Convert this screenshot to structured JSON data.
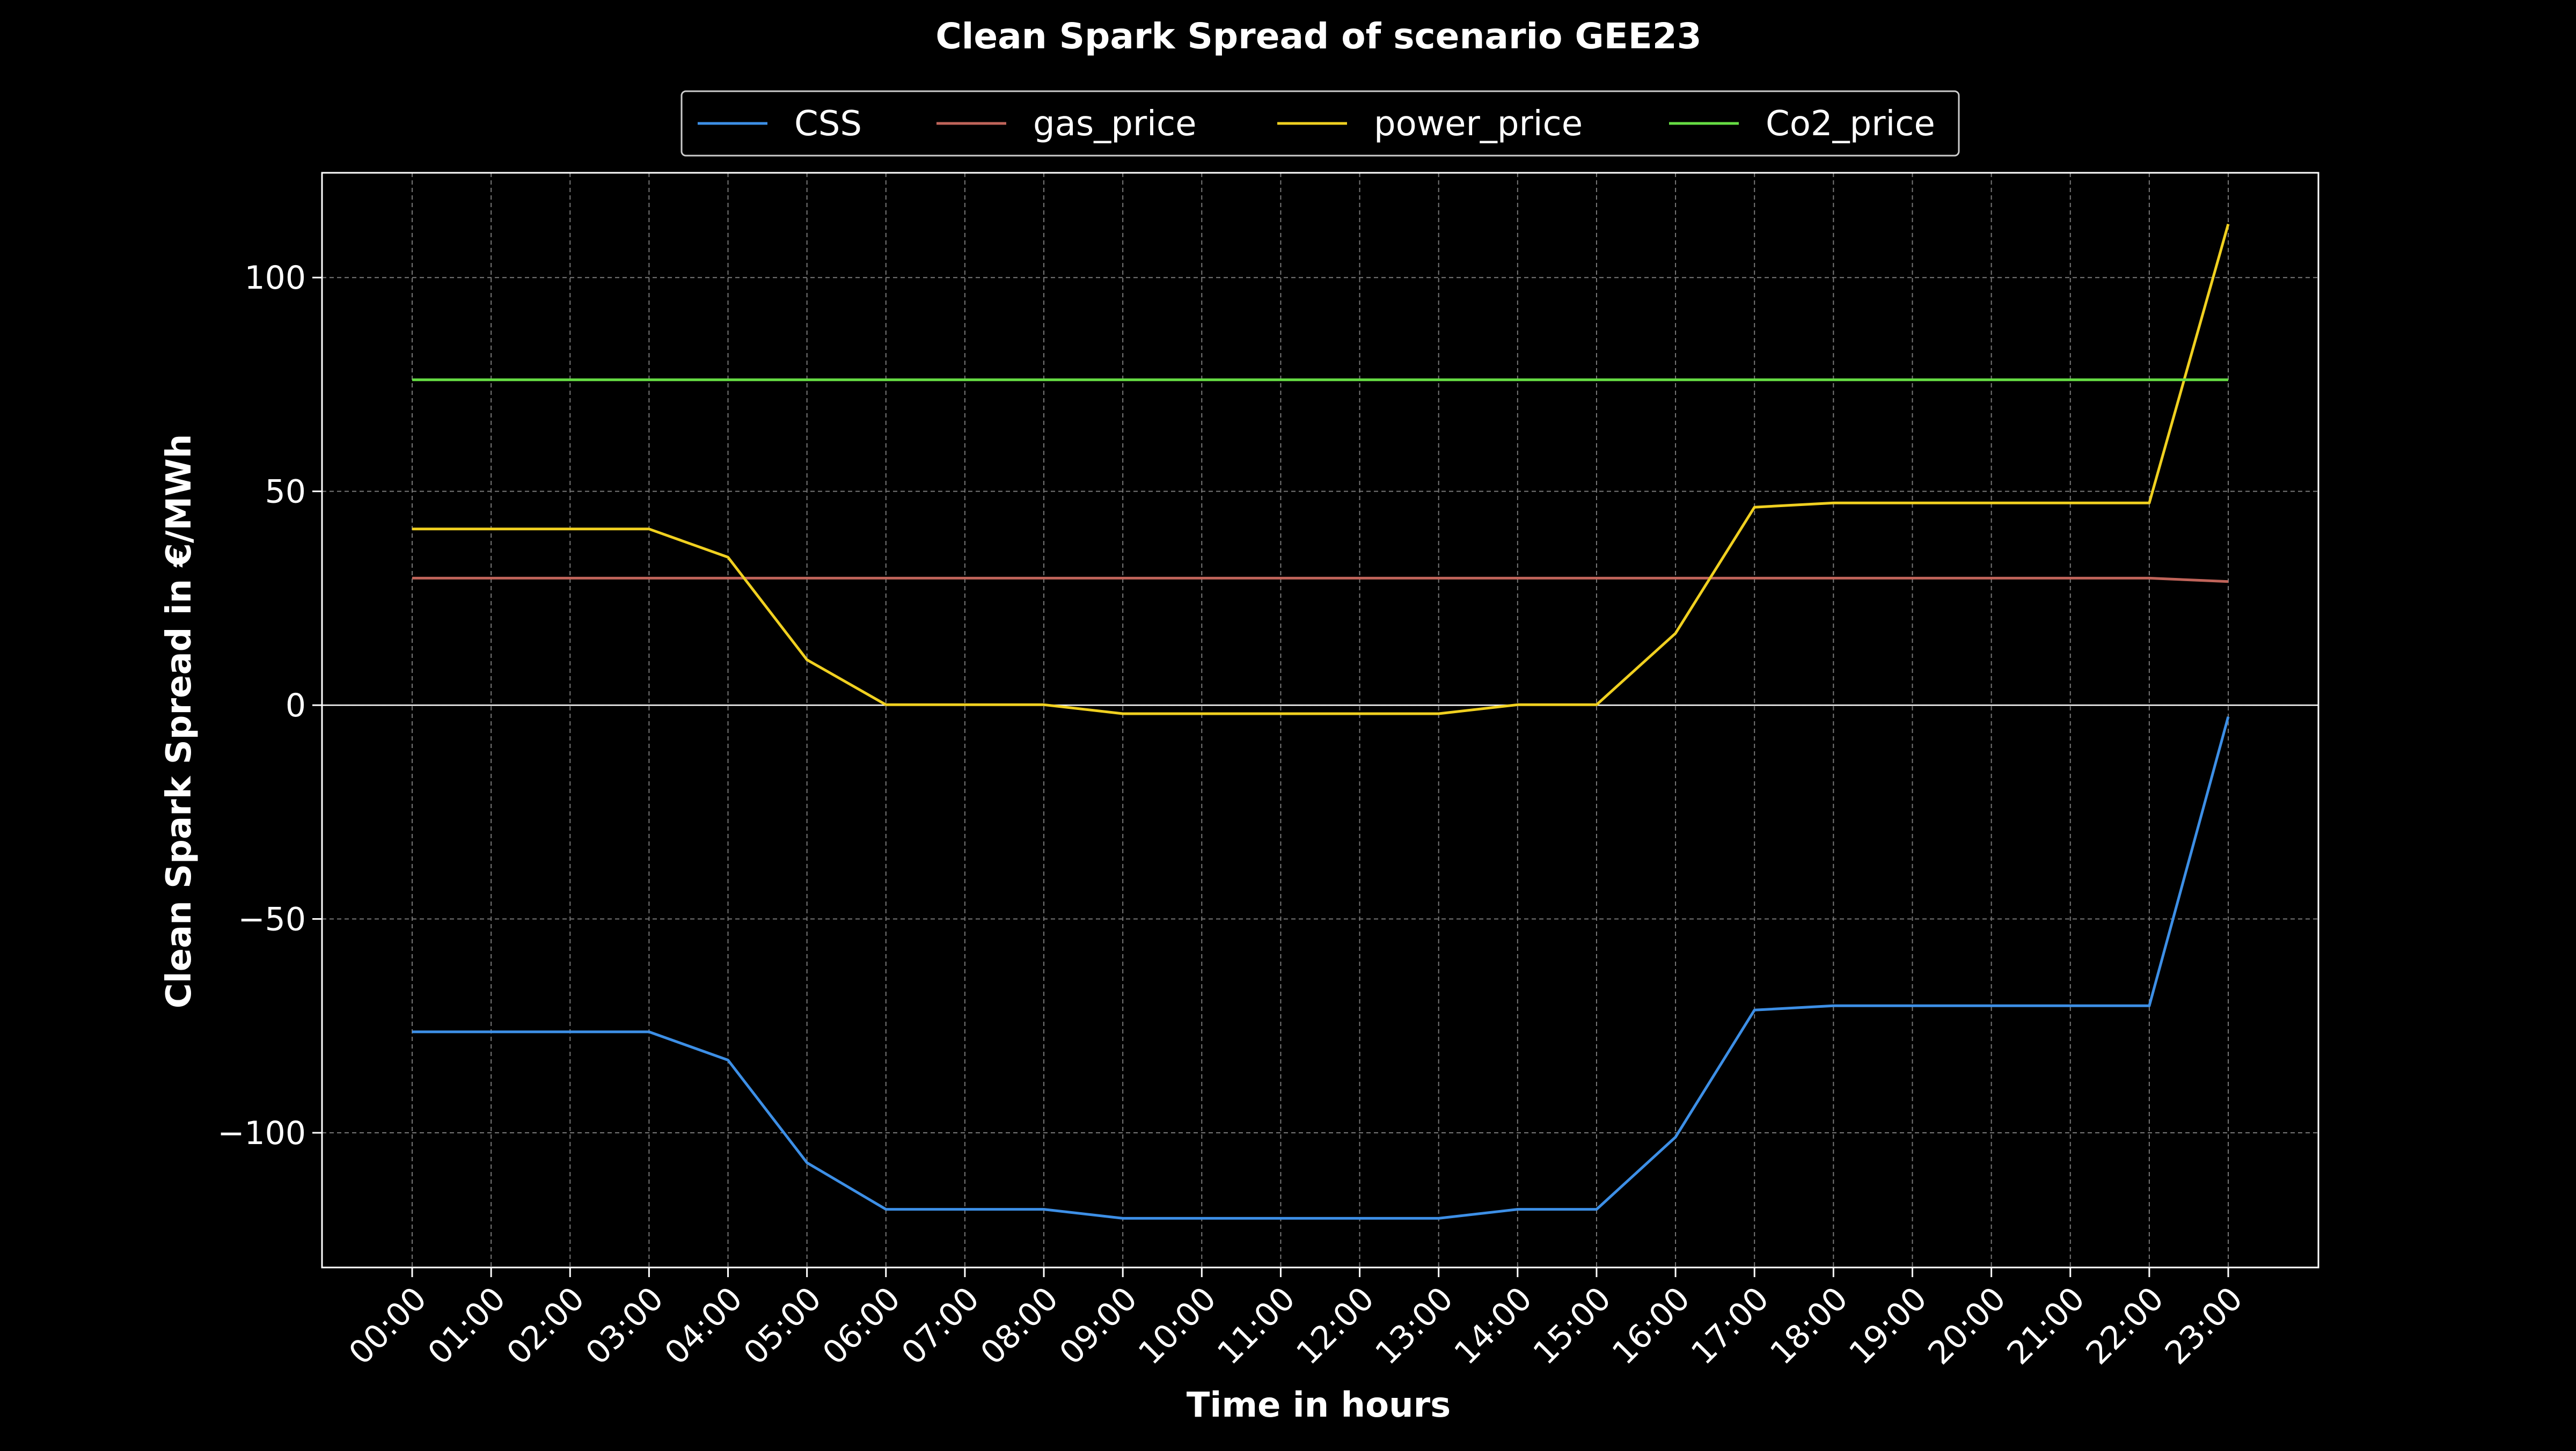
{
  "chart_data": {
    "type": "line",
    "title": "Clean Spark Spread of scenario GEE23",
    "xlabel": "Time in hours",
    "ylabel": "Clean Spark Spread in €/MWh",
    "categories": [
      "00:00",
      "01:00",
      "02:00",
      "03:00",
      "04:00",
      "05:00",
      "06:00",
      "07:00",
      "08:00",
      "09:00",
      "10:00",
      "11:00",
      "12:00",
      "13:00",
      "14:00",
      "15:00",
      "16:00",
      "17:00",
      "18:00",
      "19:00",
      "20:00",
      "21:00",
      "22:00",
      "23:00"
    ],
    "ylim": [
      -131.5,
      124.5
    ],
    "yticks": [
      -100,
      -50,
      0,
      50,
      100
    ],
    "ytick_labels": [
      "−100",
      "−50",
      "0",
      "50",
      "100"
    ],
    "grid": true,
    "legend_position": "top-center",
    "zero_line": true,
    "series": [
      {
        "name": "CSS",
        "color": "#3d8fe6",
        "values": [
          -76.4,
          -76.4,
          -76.4,
          -76.4,
          -83.0,
          -107.0,
          -117.9,
          -117.9,
          -117.9,
          -120.0,
          -120.0,
          -120.0,
          -120.0,
          -120.0,
          -117.9,
          -117.9,
          -101.0,
          -71.3,
          -70.3,
          -70.3,
          -70.3,
          -70.3,
          -70.3,
          -2.7
        ]
      },
      {
        "name": "gas_price",
        "color": "#c0645a",
        "values": [
          29.7,
          29.7,
          29.7,
          29.7,
          29.7,
          29.7,
          29.7,
          29.7,
          29.7,
          29.7,
          29.7,
          29.7,
          29.7,
          29.7,
          29.7,
          29.7,
          29.7,
          29.7,
          29.7,
          29.7,
          29.7,
          29.7,
          29.7,
          28.9
        ]
      },
      {
        "name": "power_price",
        "color": "#f0d020",
        "values": [
          41.2,
          41.2,
          41.2,
          41.2,
          34.6,
          10.6,
          0.1,
          0.1,
          0.1,
          -2.0,
          -2.0,
          -2.0,
          -2.0,
          -2.0,
          0.1,
          0.1,
          16.8,
          46.3,
          47.3,
          47.3,
          47.3,
          47.3,
          47.3,
          112.5
        ]
      },
      {
        "name": "Co2_price",
        "color": "#66dd44",
        "values": [
          76.1,
          76.1,
          76.1,
          76.1,
          76.1,
          76.1,
          76.1,
          76.1,
          76.1,
          76.1,
          76.1,
          76.1,
          76.1,
          76.1,
          76.1,
          76.1,
          76.1,
          76.1,
          76.1,
          76.1,
          76.1,
          76.1,
          76.1,
          76.1
        ]
      }
    ]
  }
}
